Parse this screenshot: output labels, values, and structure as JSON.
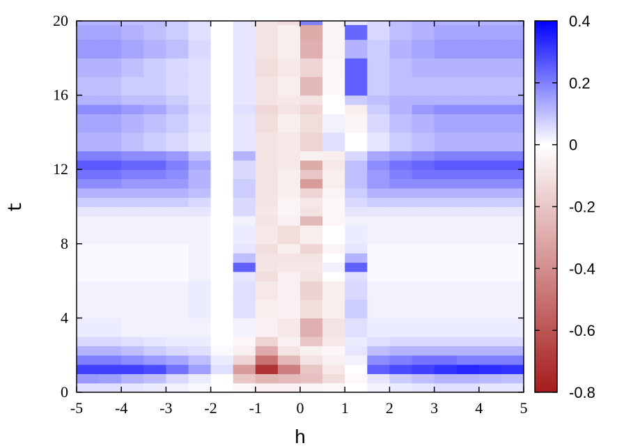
{
  "chart_data": {
    "type": "heatmap",
    "xlabel": "h",
    "ylabel": "t",
    "xlim": [
      -5,
      5
    ],
    "ylim": [
      0,
      20
    ],
    "x_ticks": [
      -5,
      -4,
      -3,
      -2,
      -1,
      0,
      1,
      2,
      3,
      4,
      5
    ],
    "y_ticks": [
      0,
      4,
      8,
      12,
      16,
      20
    ],
    "colorbar": {
      "range": [
        -0.8,
        0.4
      ],
      "ticks": [
        "0.4",
        "0.2",
        "0",
        "-0.2",
        "-0.4",
        "-0.6",
        "-0.8"
      ],
      "color_min": "#a61c1c",
      "color_mid": "#ffffff",
      "color_max": "#0000ff"
    },
    "x_centers": [
      -4.75,
      -4.25,
      -3.75,
      -3.25,
      -2.75,
      -2.25,
      -1.75,
      -1.25,
      -0.75,
      -0.25,
      0.25,
      0.75,
      1.25,
      1.75,
      2.25,
      2.75,
      3.25,
      3.75,
      4.25,
      4.75
    ],
    "t_edges": [
      0,
      0.5,
      1,
      1.5,
      2,
      2.5,
      3,
      4,
      5,
      6,
      6.5,
      7,
      7.5,
      8,
      9,
      9.5,
      10,
      10.5,
      11,
      11.5,
      12,
      12.5,
      13,
      14,
      15,
      15.5,
      16,
      17,
      18,
      19,
      19.8,
      20
    ],
    "z": [
      [
        0.05,
        0.05,
        0.04,
        0.03,
        0.02,
        0.01,
        0.0,
        -0.02,
        -0.05,
        -0.05,
        -0.04,
        -0.02,
        0.0,
        0.02,
        0.03,
        0.04,
        0.05,
        0.05,
        0.04,
        0.04
      ],
      [
        0.16,
        0.15,
        0.12,
        0.1,
        0.06,
        0.03,
        0.0,
        -0.2,
        -0.26,
        -0.24,
        -0.22,
        -0.12,
        -0.02,
        0.04,
        0.08,
        0.1,
        0.12,
        0.12,
        0.11,
        0.1
      ],
      [
        0.3,
        0.3,
        0.3,
        0.28,
        0.22,
        0.15,
        0.05,
        -0.35,
        -0.72,
        -0.45,
        -0.2,
        -0.08,
        0.0,
        0.25,
        0.28,
        0.3,
        0.32,
        0.34,
        0.33,
        0.32
      ],
      [
        0.2,
        0.2,
        0.18,
        0.16,
        0.14,
        0.1,
        0.03,
        -0.15,
        -0.5,
        -0.25,
        -0.1,
        -0.05,
        0.02,
        0.18,
        0.2,
        0.22,
        0.22,
        0.2,
        0.2,
        0.2
      ],
      [
        0.12,
        0.12,
        0.1,
        0.08,
        0.06,
        0.05,
        0.01,
        -0.05,
        -0.3,
        -0.1,
        -0.05,
        -0.03,
        0.04,
        0.1,
        0.12,
        0.12,
        0.12,
        0.12,
        0.12,
        0.12
      ],
      [
        0.06,
        0.06,
        0.05,
        0.04,
        0.03,
        0.03,
        0.0,
        -0.03,
        -0.15,
        -0.05,
        -0.2,
        -0.08,
        0.03,
        0.05,
        0.06,
        0.06,
        0.06,
        0.06,
        0.06,
        0.06
      ],
      [
        0.03,
        0.03,
        0.02,
        0.02,
        0.02,
        0.02,
        0.0,
        0.02,
        -0.05,
        -0.08,
        -0.28,
        -0.1,
        0.05,
        0.03,
        0.03,
        0.03,
        0.03,
        0.03,
        0.03,
        0.03
      ],
      [
        0.02,
        0.02,
        0.02,
        0.02,
        0.02,
        0.03,
        0.0,
        0.05,
        -0.06,
        -0.05,
        -0.12,
        -0.06,
        0.08,
        0.02,
        0.02,
        0.02,
        0.02,
        0.02,
        0.02,
        0.02
      ],
      [
        0.02,
        0.02,
        0.02,
        0.02,
        0.02,
        0.03,
        0.0,
        0.05,
        -0.08,
        -0.05,
        -0.16,
        -0.06,
        0.06,
        0.02,
        0.02,
        0.02,
        0.02,
        0.02,
        0.02,
        0.02
      ],
      [
        0.01,
        0.01,
        0.01,
        0.01,
        0.01,
        0.02,
        0.0,
        0.04,
        -0.12,
        -0.05,
        -0.1,
        0.0,
        0.05,
        0.01,
        0.01,
        0.01,
        0.01,
        0.01,
        0.01,
        0.01
      ],
      [
        0.01,
        0.01,
        0.01,
        0.01,
        0.01,
        0.02,
        0.0,
        0.25,
        -0.1,
        -0.08,
        -0.08,
        0.02,
        0.25,
        0.01,
        0.01,
        0.01,
        0.01,
        0.01,
        0.01,
        0.01
      ],
      [
        0.01,
        0.01,
        0.01,
        0.01,
        0.01,
        0.02,
        0.0,
        0.1,
        -0.1,
        -0.1,
        -0.1,
        0.0,
        0.12,
        0.01,
        0.01,
        0.01,
        0.01,
        0.01,
        0.01,
        0.01
      ],
      [
        0.01,
        0.01,
        0.01,
        0.01,
        0.01,
        0.02,
        0.0,
        0.04,
        -0.12,
        -0.06,
        -0.15,
        -0.04,
        0.04,
        0.01,
        0.01,
        0.01,
        0.01,
        0.01,
        0.01,
        0.01
      ],
      [
        0.02,
        0.02,
        0.02,
        0.02,
        0.02,
        0.02,
        0.0,
        0.03,
        -0.08,
        -0.12,
        -0.06,
        0.0,
        0.03,
        0.02,
        0.02,
        0.02,
        0.02,
        0.02,
        0.02,
        0.02
      ],
      [
        0.02,
        0.02,
        0.02,
        0.02,
        0.02,
        0.02,
        0.0,
        0.02,
        -0.1,
        -0.05,
        -0.25,
        -0.03,
        0.02,
        0.02,
        0.02,
        0.02,
        0.02,
        0.02,
        0.02,
        0.02
      ],
      [
        0.04,
        0.04,
        0.04,
        0.04,
        0.04,
        0.04,
        0.0,
        0.06,
        -0.08,
        -0.04,
        -0.1,
        -0.03,
        0.04,
        0.04,
        0.04,
        0.04,
        0.04,
        0.04,
        0.04,
        0.04
      ],
      [
        0.08,
        0.08,
        0.08,
        0.08,
        0.08,
        0.06,
        0.0,
        0.06,
        -0.1,
        -0.04,
        -0.08,
        -0.03,
        0.06,
        0.08,
        0.08,
        0.08,
        0.08,
        0.08,
        0.08,
        0.08
      ],
      [
        0.12,
        0.12,
        0.12,
        0.12,
        0.12,
        0.1,
        0.0,
        0.08,
        -0.1,
        -0.06,
        -0.15,
        -0.04,
        0.08,
        0.12,
        0.12,
        0.12,
        0.12,
        0.12,
        0.12,
        0.12
      ],
      [
        0.18,
        0.18,
        0.16,
        0.16,
        0.16,
        0.12,
        0.0,
        0.08,
        -0.1,
        -0.06,
        -0.35,
        -0.06,
        0.1,
        0.16,
        0.18,
        0.18,
        0.18,
        0.18,
        0.18,
        0.18
      ],
      [
        0.22,
        0.22,
        0.2,
        0.2,
        0.18,
        0.12,
        0.0,
        0.06,
        -0.1,
        -0.06,
        -0.2,
        -0.06,
        0.1,
        0.16,
        0.2,
        0.22,
        0.22,
        0.22,
        0.22,
        0.22
      ],
      [
        0.26,
        0.26,
        0.24,
        0.24,
        0.2,
        0.14,
        0.0,
        0.06,
        -0.1,
        -0.08,
        -0.3,
        -0.08,
        0.1,
        0.18,
        0.22,
        0.24,
        0.26,
        0.26,
        0.26,
        0.26
      ],
      [
        0.2,
        0.2,
        0.18,
        0.18,
        0.16,
        0.1,
        0.0,
        0.12,
        -0.1,
        -0.08,
        -0.05,
        -0.06,
        0.06,
        0.14,
        0.16,
        0.18,
        0.2,
        0.2,
        0.2,
        0.2
      ],
      [
        0.12,
        0.12,
        0.1,
        0.08,
        0.06,
        0.04,
        0.0,
        0.04,
        -0.1,
        -0.08,
        -0.15,
        0.05,
        0.0,
        0.04,
        0.08,
        0.1,
        0.12,
        0.12,
        0.12,
        0.12
      ],
      [
        0.14,
        0.14,
        0.12,
        0.1,
        0.08,
        0.05,
        0.0,
        0.04,
        -0.12,
        -0.06,
        -0.12,
        0.02,
        -0.04,
        0.06,
        0.1,
        0.12,
        0.14,
        0.14,
        0.14,
        0.14
      ],
      [
        0.18,
        0.18,
        0.16,
        0.14,
        0.1,
        0.06,
        0.0,
        0.05,
        -0.14,
        -0.1,
        -0.15,
        0.0,
        -0.06,
        0.08,
        0.12,
        0.16,
        0.18,
        0.18,
        0.18,
        0.18
      ],
      [
        0.12,
        0.12,
        0.1,
        0.1,
        0.08,
        0.05,
        0.0,
        0.04,
        -0.1,
        -0.08,
        -0.1,
        0.0,
        0.08,
        0.1,
        0.12,
        0.12,
        0.12,
        0.12,
        0.12,
        0.12
      ],
      [
        0.1,
        0.1,
        0.08,
        0.08,
        0.06,
        0.05,
        0.0,
        0.04,
        -0.1,
        -0.06,
        -0.25,
        -0.02,
        0.25,
        0.08,
        0.1,
        0.1,
        0.1,
        0.1,
        0.1,
        0.1
      ],
      [
        0.12,
        0.12,
        0.1,
        0.08,
        0.06,
        0.05,
        0.0,
        0.04,
        -0.12,
        -0.08,
        -0.15,
        -0.03,
        0.25,
        0.08,
        0.1,
        0.12,
        0.12,
        0.12,
        0.12,
        0.12
      ],
      [
        0.16,
        0.16,
        0.14,
        0.12,
        0.1,
        0.06,
        0.0,
        0.04,
        -0.1,
        -0.06,
        -0.28,
        -0.04,
        0.12,
        0.08,
        0.12,
        0.14,
        0.16,
        0.16,
        0.16,
        0.16
      ],
      [
        0.14,
        0.14,
        0.12,
        0.1,
        0.08,
        0.05,
        0.0,
        0.04,
        -0.1,
        -0.06,
        -0.3,
        -0.04,
        0.24,
        0.06,
        0.1,
        0.12,
        0.14,
        0.14,
        0.14,
        0.14
      ],
      [
        0.12,
        0.12,
        0.1,
        0.1,
        0.08,
        0.05,
        0.0,
        0.04,
        -0.1,
        -0.12,
        0.2,
        -0.04,
        0.04,
        0.06,
        0.1,
        0.12,
        0.12,
        0.12,
        0.12,
        0.12
      ]
    ]
  }
}
